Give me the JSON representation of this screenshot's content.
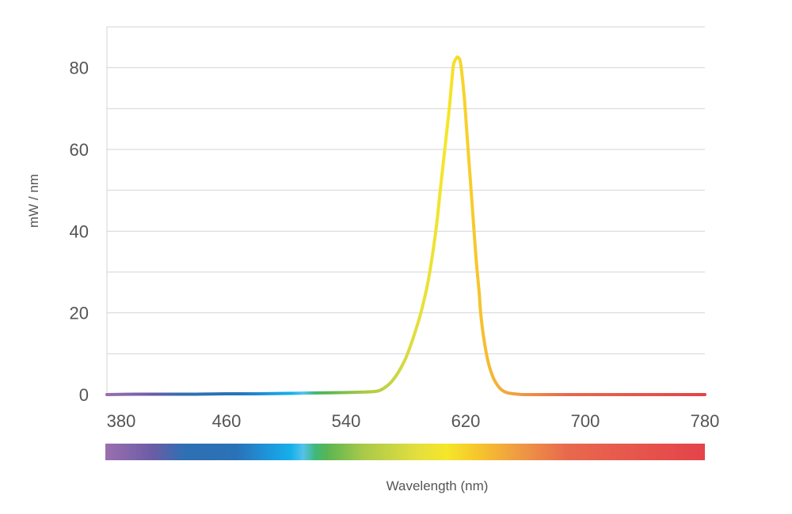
{
  "chart_data": {
    "type": "line",
    "title": "",
    "xlabel": "Wavelength (nm)",
    "ylabel": "mW / nm",
    "xlim": [
      380,
      780
    ],
    "ylim": [
      0,
      90
    ],
    "x_ticks": [
      380,
      460,
      540,
      620,
      700,
      780
    ],
    "y_ticks": [
      0,
      20,
      40,
      60,
      80
    ],
    "grid": true,
    "legend": "none",
    "colorbar": "visible spectrum gradient below x-axis",
    "series": [
      {
        "x": [
          380,
          400,
          420,
          440,
          460,
          480,
          500,
          520,
          540,
          550,
          560,
          565,
          570,
          575,
          580,
          585,
          590,
          595,
          600,
          603,
          606,
          609,
          611,
          612,
          614,
          615,
          616,
          617,
          619,
          621,
          623,
          625,
          627,
          629,
          630,
          632,
          635,
          638,
          640,
          643,
          646,
          650,
          655,
          660,
          680,
          700,
          720,
          740,
          760,
          780
        ],
        "y": [
          0,
          0.1,
          0.1,
          0.1,
          0.2,
          0.2,
          0.3,
          0.4,
          0.5,
          0.6,
          0.8,
          1.5,
          3,
          5.5,
          9,
          14,
          20,
          28,
          40,
          50,
          60,
          70,
          78,
          81,
          82.5,
          82.5,
          82,
          80,
          73,
          63,
          53,
          43,
          33,
          25,
          20,
          14,
          8,
          4.5,
          3,
          1.5,
          0.7,
          0.3,
          0.1,
          0,
          0,
          0,
          0,
          0,
          0,
          0
        ]
      }
    ]
  }
}
